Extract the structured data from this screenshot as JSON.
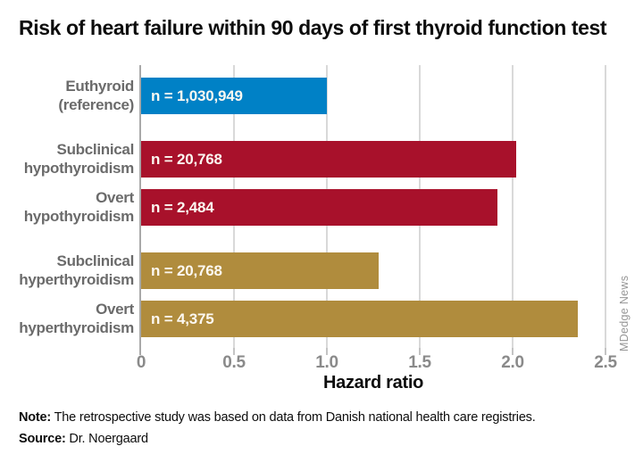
{
  "title": "Risk of heart failure within 90 days of first thyroid function test",
  "watermark": "MDedge News",
  "note_label": "Note:",
  "note_text": " The retrospective study was based on data from Danish national health care registries.",
  "source_label": "Source:",
  "source_text": " Dr. Noergaard",
  "chart_data": {
    "type": "bar",
    "orientation": "horizontal",
    "title": "Risk of heart failure within 90 days of first thyroid function test",
    "xlabel": "Hazard ratio",
    "ylabel": "",
    "xlim": [
      0,
      2.5
    ],
    "xticks": [
      0,
      0.5,
      1.0,
      1.5,
      2.0,
      2.5
    ],
    "xtick_labels": [
      "0",
      "0.5",
      "1.0",
      "1.5",
      "2.0",
      "2.5"
    ],
    "grid": true,
    "categories": [
      "Euthyroid (reference)",
      "Subclinical hypothyroidism",
      "Overt hypothyroidism",
      "Subclinical hyperthyroidism",
      "Overt hyperthyroidism"
    ],
    "values": [
      1.0,
      2.02,
      1.92,
      1.28,
      2.35
    ],
    "bars": [
      {
        "label_lines": [
          "Euthyroid",
          "(reference)"
        ],
        "value": 1.0,
        "n_label": "n = 1,030,949",
        "color": "#0081c6",
        "group": "reference"
      },
      {
        "label_lines": [
          "Subclinical",
          "hypothyroidism"
        ],
        "value": 2.02,
        "n_label": "n = 20,768",
        "color": "#a8112b",
        "group": "hypothyroidism"
      },
      {
        "label_lines": [
          "Overt",
          "hypothyroidism"
        ],
        "value": 1.92,
        "n_label": "n = 2,484",
        "color": "#a8112b",
        "group": "hypothyroidism"
      },
      {
        "label_lines": [
          "Subclinical",
          "hyperthyroidism"
        ],
        "value": 1.28,
        "n_label": "n = 20,768",
        "color": "#b08c3d",
        "group": "hyperthyroidism"
      },
      {
        "label_lines": [
          "Overt",
          "hyperthyroidism"
        ],
        "value": 2.35,
        "n_label": "n = 4,375",
        "color": "#b08c3d",
        "group": "hyperthyroidism"
      }
    ],
    "colors": {
      "reference_blue": "#0081c6",
      "hypothyroidism_red": "#a8112b",
      "hyperthyroidism_gold": "#b08c3d",
      "axis_line": "#a9a9a9",
      "gridline": "#d9d9d9",
      "category_label": "#6b6b6b",
      "tick_label": "#8a8a8a"
    },
    "legend": null
  }
}
